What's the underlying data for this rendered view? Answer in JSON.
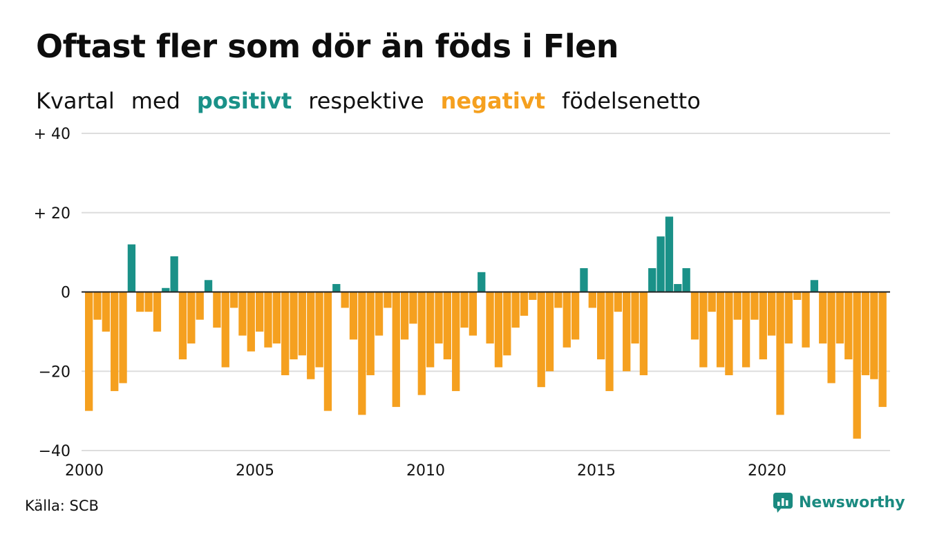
{
  "header": {
    "title": "Oftast fler som dör än föds i Flen",
    "subtitle": {
      "w1": "Kvartal",
      "w2": "med",
      "positive": "positivt",
      "w3": "respektive",
      "negative": "negativt",
      "w4": "födelsenetto"
    }
  },
  "footer": {
    "source": "Källa: SCB",
    "brand": "Newsworthy"
  },
  "colors": {
    "positive": "#1a9188",
    "negative": "#f5a01f",
    "grid": "#dddddd",
    "zero_line": "#222222",
    "brand": "#1a8a80"
  },
  "chart_data": {
    "type": "bar",
    "x_start_year": 2000,
    "x_period": "quarter",
    "x_ticks": [
      "2000",
      "2005",
      "2010",
      "2015",
      "2020"
    ],
    "y_ticks": [
      "+ 40",
      "+ 20",
      "0",
      "−20",
      "−40"
    ],
    "y_tick_values": [
      40,
      20,
      0,
      -20,
      -40
    ],
    "ylim": [
      -40,
      40
    ],
    "grid": true,
    "values": [
      -30,
      -7,
      -10,
      -25,
      -23,
      12,
      -5,
      -5,
      -10,
      1,
      9,
      -17,
      -13,
      -7,
      3,
      -9,
      -19,
      -4,
      -11,
      -15,
      -10,
      -14,
      -13,
      -21,
      -17,
      -16,
      -22,
      -19,
      -30,
      2,
      -4,
      -12,
      -31,
      -21,
      -11,
      -4,
      -29,
      -12,
      -8,
      -26,
      -19,
      -13,
      -17,
      -25,
      -9,
      -11,
      5,
      -13,
      -19,
      -16,
      -9,
      -6,
      -2,
      -24,
      -20,
      -4,
      -14,
      -12,
      6,
      -4,
      -17,
      -25,
      -5,
      -20,
      -13,
      -21,
      6,
      14,
      19,
      2,
      6,
      -12,
      -19,
      -5,
      -19,
      -21,
      -7,
      -19,
      -7,
      -17,
      -11,
      -31,
      -13,
      -2,
      -14,
      3,
      -13,
      -23,
      -13,
      -17,
      -37,
      -21,
      -22,
      -29
    ]
  }
}
